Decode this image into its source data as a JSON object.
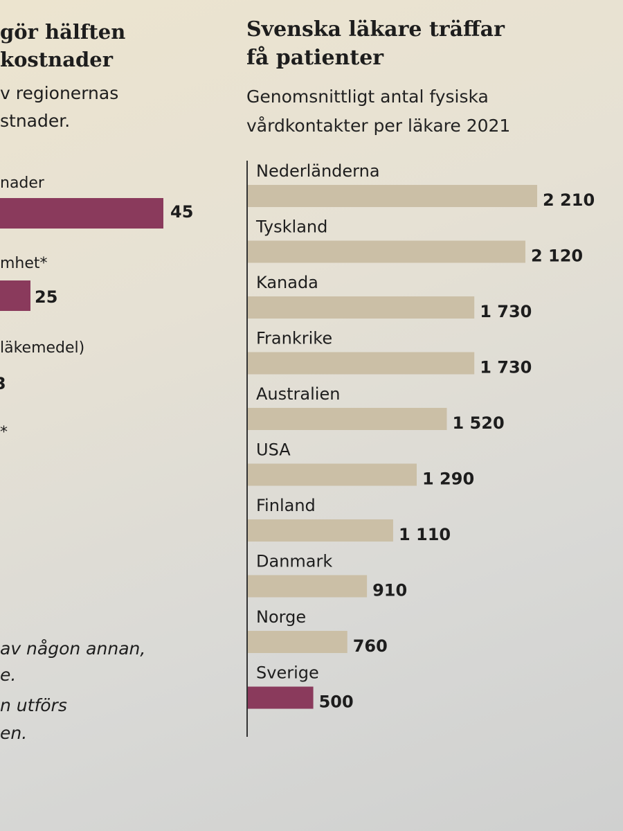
{
  "left_fragment": {
    "title_lines": [
      "gör hälften",
      "kostnader"
    ],
    "subtitle_lines": [
      "v regionernas",
      "stnader."
    ],
    "items": [
      {
        "label": "nader",
        "value": "45"
      },
      {
        "label": "mhet*",
        "value": "25"
      },
      {
        "label": "läkemedel)",
        "value": "3"
      },
      {
        "label": "*",
        "value": ""
      }
    ],
    "footnote_lines": [
      "av någon annan,",
      "e.",
      "n utförs",
      "en."
    ],
    "colors": {
      "highlight": "#8a3a5c"
    }
  },
  "chart_data": {
    "type": "bar",
    "orientation": "horizontal",
    "title": "Svenska läkare träffar få patienter",
    "title_lines": [
      "Svenska läkare träffar",
      "få patienter"
    ],
    "subtitle": "Genomsnittligt antal fysiska vårdkontakter per läkare 2021",
    "subtitle_lines": [
      "Genomsnittligt antal fysiska",
      "vårdkontakter per läkare 2021"
    ],
    "categories": [
      "Nederländerna",
      "Tyskland",
      "Kanada",
      "Frankrike",
      "Australien",
      "USA",
      "Finland",
      "Danmark",
      "Norge",
      "Sverige"
    ],
    "values": [
      2210,
      2120,
      1730,
      1730,
      1520,
      1290,
      1110,
      910,
      760,
      500
    ],
    "value_labels": [
      "2 210",
      "2 120",
      "1 730",
      "1 730",
      "1 520",
      "1 290",
      "1 110",
      "910",
      "760",
      "500"
    ],
    "highlight": "Sverige",
    "colors": {
      "bar": "#cbbfa6",
      "highlight": "#8a3a5c",
      "text": "#1d1d1d"
    },
    "xlim": [
      0,
      2210
    ],
    "grid": false,
    "legend": "none"
  }
}
